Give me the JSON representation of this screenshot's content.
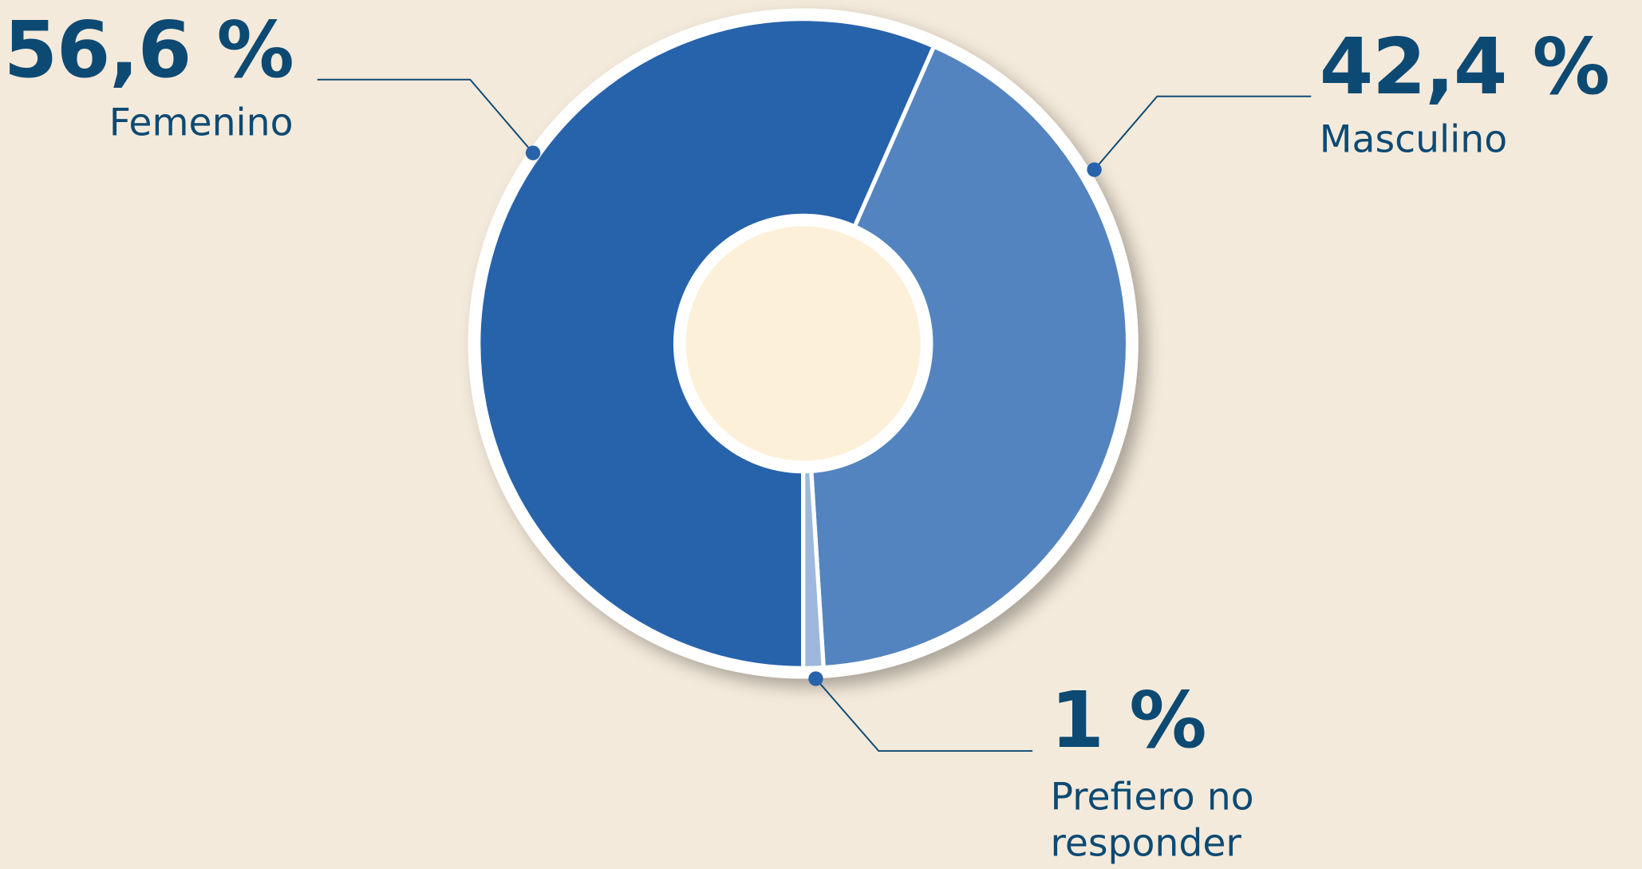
{
  "chart_data": {
    "type": "donut",
    "categories": [
      "Femenino",
      "Masculino",
      "Prefiero no responder"
    ],
    "values": [
      56.6,
      42.4,
      1
    ],
    "value_labels": [
      "56,6 %",
      "42,4 %",
      "1 %"
    ],
    "colors": [
      "#2763ab",
      "#5384bf",
      "#9db8dc"
    ]
  }
}
